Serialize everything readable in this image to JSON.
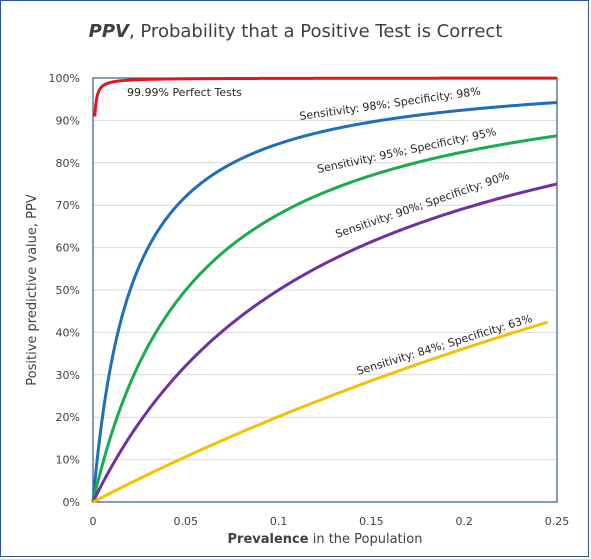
{
  "chart_data": {
    "type": "line",
    "title_emphasis": "PPV",
    "title_rest": ", Probability that a Positive Test is Correct",
    "xlabel_bold": "Prevalence",
    "xlabel_rest": " in the Population",
    "ylabel": "Positive predictive value,  PPV",
    "xlim": [
      0,
      0.25
    ],
    "ylim": [
      0,
      1
    ],
    "x_ticks": [
      "0",
      "0.05",
      "0.1",
      "0.15",
      "0.2",
      "0.25"
    ],
    "x_tick_values": [
      0,
      0.05,
      0.1,
      0.15,
      0.2,
      0.25
    ],
    "y_ticks": [
      "0%",
      "10%",
      "20%",
      "30%",
      "40%",
      "50%",
      "60%",
      "70%",
      "80%",
      "90%",
      "100%"
    ],
    "y_tick_values": [
      0,
      0.1,
      0.2,
      0.3,
      0.4,
      0.5,
      0.6,
      0.7,
      0.8,
      0.9,
      1.0
    ],
    "grid": true,
    "series": [
      {
        "name": "99.99% Perfect Tests",
        "sensitivity": 0.9999,
        "specificity": 0.9999,
        "color": "#e8141b",
        "x_start": 0.001,
        "x_end": 0.25
      },
      {
        "name": "Sensitivity: 98%; Specificity: 98%",
        "sensitivity": 0.98,
        "specificity": 0.98,
        "color": "#1f6fb7",
        "x_start": 0.001,
        "x_end": 0.25
      },
      {
        "name": "Sensitivity: 95%; Specificity: 95%",
        "sensitivity": 0.95,
        "specificity": 0.95,
        "color": "#1aab4c",
        "x_start": 0.001,
        "x_end": 0.25
      },
      {
        "name": "Sensitivity: 90%; Specificity: 90%",
        "sensitivity": 0.9,
        "specificity": 0.9,
        "color": "#7030a0",
        "x_start": 0.001,
        "x_end": 0.25
      },
      {
        "name": "Sensitivity: 84%; Specificity: 63%",
        "sensitivity": 0.84,
        "specificity": 0.63,
        "color": "#f5c000",
        "x_start": 0.001,
        "x_end": 0.245
      }
    ]
  }
}
